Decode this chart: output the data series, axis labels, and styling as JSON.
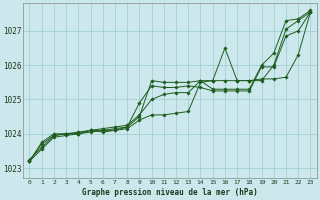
{
  "xlabel": "Graphe pression niveau de la mer (hPa)",
  "xlim_min": -0.5,
  "xlim_max": 23.5,
  "ylim_min": 1022.7,
  "ylim_max": 1027.8,
  "yticks": [
    1023,
    1024,
    1025,
    1026,
    1027
  ],
  "xticks": [
    0,
    1,
    2,
    3,
    4,
    5,
    6,
    7,
    8,
    9,
    10,
    11,
    12,
    13,
    14,
    15,
    16,
    17,
    18,
    19,
    20,
    21,
    22,
    23
  ],
  "bg_color": "#cce8ec",
  "grid_color": "#99cccc",
  "line_color": "#1e5c1e",
  "series": [
    [
      1023.2,
      1023.55,
      1023.9,
      1023.95,
      1024.0,
      1024.05,
      1024.1,
      1024.1,
      1024.15,
      1024.4,
      1024.55,
      1024.55,
      1024.6,
      1024.65,
      1025.5,
      1025.55,
      1026.5,
      1025.55,
      1025.55,
      1025.55,
      1026.0,
      1027.05,
      1027.3,
      1027.55
    ],
    [
      1023.2,
      1023.7,
      1023.95,
      1024.0,
      1024.0,
      1024.1,
      1024.05,
      1024.1,
      1024.2,
      1024.9,
      1025.4,
      1025.35,
      1025.35,
      1025.4,
      1025.35,
      1025.25,
      1025.25,
      1025.25,
      1025.25,
      1025.95,
      1025.95,
      1026.85,
      1027.0,
      1027.55
    ],
    [
      1023.2,
      1023.75,
      1024.0,
      1024.0,
      1024.05,
      1024.1,
      1024.15,
      1024.2,
      1024.25,
      1024.55,
      1025.0,
      1025.15,
      1025.2,
      1025.2,
      1025.55,
      1025.55,
      1025.55,
      1025.55,
      1025.55,
      1025.6,
      1025.6,
      1025.65,
      1026.3,
      1027.55
    ],
    [
      1023.25,
      1023.6,
      1023.95,
      1024.0,
      1024.0,
      1024.1,
      1024.1,
      1024.15,
      1024.2,
      1024.5,
      1025.55,
      1025.5,
      1025.5,
      1025.5,
      1025.55,
      1025.3,
      1025.3,
      1025.3,
      1025.3,
      1026.0,
      1026.35,
      1027.3,
      1027.35,
      1027.6
    ]
  ]
}
